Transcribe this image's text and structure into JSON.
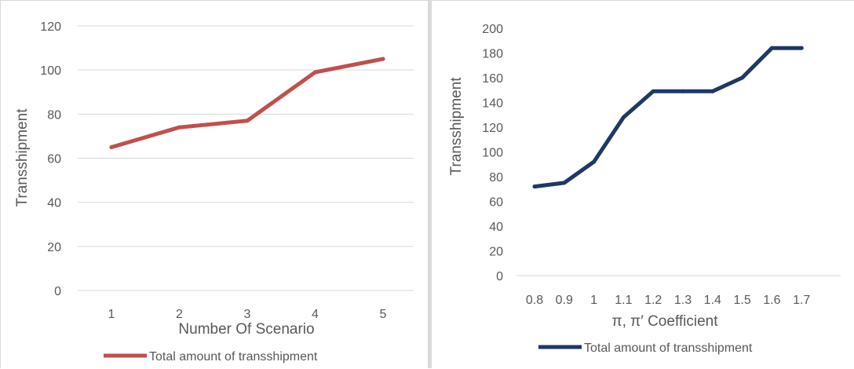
{
  "chart_data": [
    {
      "type": "line",
      "title": "",
      "xlabel": "Number Of Scenario",
      "ylabel": "Transshipment",
      "categories": [
        "1",
        "2",
        "3",
        "4",
        "5"
      ],
      "series": [
        {
          "name": "Total amount of transshipment",
          "values": [
            65,
            74,
            77,
            99,
            105
          ],
          "color": "#c0504d"
        }
      ],
      "ylim": [
        0,
        120
      ],
      "yticks": [
        0,
        20,
        40,
        60,
        80,
        100,
        120
      ],
      "grid": true,
      "legend": "bottom"
    },
    {
      "type": "line",
      "title": "",
      "xlabel": "π, π′  Coefficient",
      "ylabel": "Transshipment",
      "categories": [
        "0.8",
        "0.9",
        "1",
        "1.1",
        "1.2",
        "1.3",
        "1.4",
        "1.5",
        "1.6",
        "1.7"
      ],
      "series": [
        {
          "name": "Total amount of transshipment",
          "values": [
            72,
            75,
            92,
            128,
            149,
            149,
            149,
            160,
            184,
            184
          ],
          "color": "#1f3864"
        }
      ],
      "ylim": [
        0,
        200
      ],
      "yticks": [
        0,
        20,
        40,
        60,
        80,
        100,
        120,
        140,
        160,
        180,
        200
      ],
      "grid": false,
      "legend": "bottom"
    }
  ]
}
